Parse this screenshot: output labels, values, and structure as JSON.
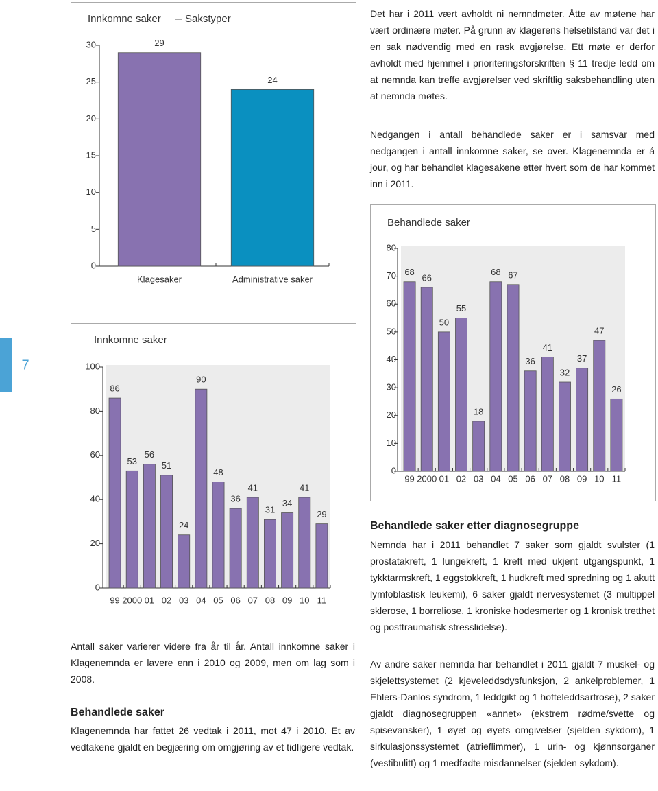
{
  "page_number": "7",
  "chart_data": [
    {
      "type": "bar",
      "title": "Innkomne saker",
      "subtitle": "Sakstyper",
      "categories": [
        "Klagesaker",
        "Administrative saker"
      ],
      "values": [
        29,
        24
      ],
      "colors": [
        "#8872b0",
        "#0a90c0"
      ],
      "ylim": [
        0,
        30
      ],
      "yticks": [
        0,
        5,
        10,
        15,
        20,
        25,
        30
      ]
    },
    {
      "type": "bar",
      "title": "Innkomne saker",
      "categories": [
        "99",
        "2000",
        "01",
        "02",
        "03",
        "04",
        "05",
        "06",
        "07",
        "08",
        "09",
        "10",
        "11"
      ],
      "values": [
        86,
        53,
        56,
        51,
        24,
        90,
        48,
        36,
        41,
        31,
        34,
        41,
        29
      ],
      "color": "#8872b0",
      "ylim": [
        0,
        100
      ],
      "yticks": [
        0,
        20,
        40,
        60,
        80,
        100
      ]
    },
    {
      "type": "bar",
      "title": "Behandlede saker",
      "categories": [
        "99",
        "2000",
        "01",
        "02",
        "03",
        "04",
        "05",
        "06",
        "07",
        "08",
        "09",
        "10",
        "11"
      ],
      "values": [
        68,
        66,
        50,
        55,
        18,
        68,
        67,
        36,
        41,
        32,
        37,
        47,
        26
      ],
      "color": "#8872b0",
      "ylim": [
        0,
        80
      ],
      "yticks": [
        0,
        10,
        20,
        30,
        40,
        50,
        60,
        70,
        80
      ]
    }
  ],
  "right_top": [
    "Det har i 2011 vært avholdt ni nemndmøter. Åtte av møtene har vært ordinære møter. På grunn av klagerens helsetilstand var det i en sak nødvendig med en rask avgjørelse. Ett møte er derfor avholdt med hjemmel i prioriteringsforskriften § 11 tredje ledd om at nemnda kan treffe avgjørelser ved skriftlig saksbehandling uten at nemnda møtes.",
    "Nedgangen i antall behandlede saker er i samsvar med nedgangen i antall innkomne saker, se over. Klagenemnda er á jour, og har behandlet klagesakene etter hvert som de har kommet inn i 2011."
  ],
  "left_bottom": {
    "intro": "Antall saker varierer videre fra år til år. Antall innkomne saker i Klagenemnda er lavere enn i 2010 og 2009, men om lag som i 2008.",
    "heading": "Behandlede saker",
    "text": "Klagenemnda har fattet 26 vedtak i 2011, mot 47 i 2010. Et av vedtakene gjaldt en begjæring om omgjøring av et tidligere vedtak."
  },
  "right_bottom": {
    "heading": "Behandlede saker etter diagnosegruppe",
    "paragraphs": [
      "Nemnda har i 2011 behandlet 7 saker som gjaldt svulster (1 prostatakreft, 1 lungekreft, 1 kreft med ukjent utgangspunkt, 1 tykktarmskreft, 1 eggstokkreft, 1 hudkreft med spredning og 1 akutt lymfoblastisk leukemi), 6 saker gjaldt nervesystemet (3 multippel sklerose, 1 borreliose, 1 kroniske hodesmerter og 1 kronisk tretthet og posttraumatisk stresslidelse).",
      "Av andre saker nemnda har behandlet i 2011 gjaldt 7 muskel- og skjelettsystemet (2 kjeveleddsdysfunksjon, 2 ankelproblemer, 1 Ehlers-Danlos syndrom, 1 leddgikt og 1 hofteleddsartrose), 2 saker gjaldt diagnosegruppen «annet» (ekstrem rødme/svette og spisevansker), 1 øyet og øyets omgivelser (sjelden sykdom), 1 sirkulasjonssystemet (atrieflimmer), 1 urin- og kjønnsorganer (vestibulitt) og 1 medfødte misdannelser (sjelden sykdom)."
    ]
  }
}
